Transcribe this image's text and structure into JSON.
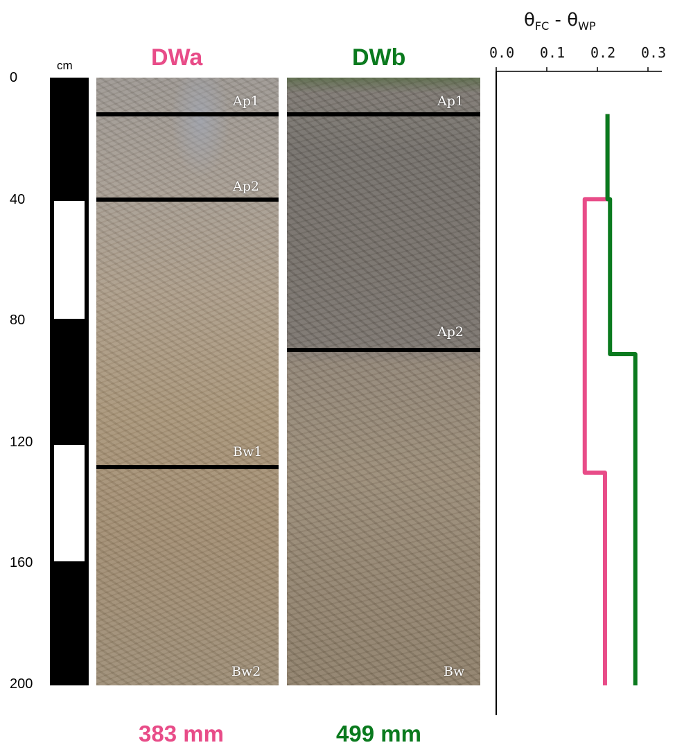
{
  "ruler": {
    "unit": "cm",
    "depth_labels": [
      "0",
      "40",
      "80",
      "120",
      "160",
      "200"
    ]
  },
  "profiles": [
    {
      "name": "DWa",
      "color": "#e84c88",
      "horizons": [
        "Ap1",
        "Ap2",
        "Bw1",
        "Bw2"
      ],
      "boundaries_cm": [
        12,
        40,
        128
      ],
      "total": "383 mm"
    },
    {
      "name": "DWb",
      "color": "#0a7a1e",
      "horizons": [
        "Ap1",
        "Ap2",
        "Bw"
      ],
      "boundaries_cm": [
        12,
        89
      ],
      "total": "499 mm"
    }
  ],
  "chart_data": {
    "type": "line",
    "title": "θFC - θWP",
    "title_main_1": "θ",
    "title_sub_1": "FC",
    "title_mid": " - θ",
    "title_sub_2": "WP",
    "xlim": [
      0,
      0.3
    ],
    "x_ticks": [
      "0.0",
      "0.1",
      "0.2",
      "0.3"
    ],
    "ylim": [
      0,
      200
    ],
    "y_inverted": true,
    "series": [
      {
        "name": "DWa",
        "color": "#e84c88",
        "points": [
          [
            0.22,
            12
          ],
          [
            0.22,
            40
          ],
          [
            0.175,
            40
          ],
          [
            0.175,
            130
          ],
          [
            0.215,
            130
          ],
          [
            0.215,
            200
          ]
        ]
      },
      {
        "name": "DWb",
        "color": "#0a7a1e",
        "points": [
          [
            0.22,
            12
          ],
          [
            0.22,
            40
          ],
          [
            0.225,
            40
          ],
          [
            0.225,
            91
          ],
          [
            0.275,
            91
          ],
          [
            0.275,
            200
          ]
        ]
      }
    ]
  }
}
